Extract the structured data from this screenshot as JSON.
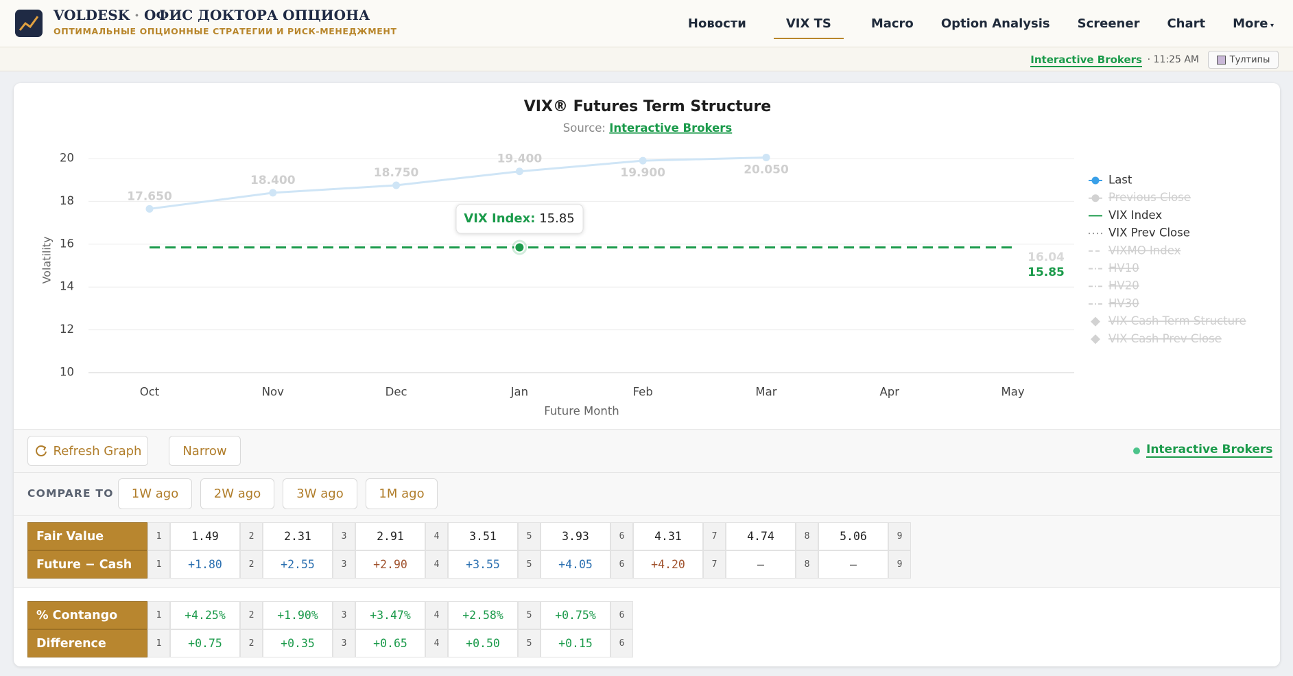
{
  "header": {
    "brand": "VOLDESK",
    "separator": "·",
    "office": "ОФИС ДОКТОРА ОПЦИОНА",
    "tagline": "ОПТИМАЛЬНЫЕ ОПЦИОННЫЕ СТРАТЕГИИ И РИСК-МЕНЕДЖМЕНТ"
  },
  "nav": {
    "items": [
      "Новости",
      "VIX TS",
      "Macro",
      "Option Analysis",
      "Screener",
      "Chart",
      "More"
    ],
    "active": 1
  },
  "status": {
    "source": "Interactive Brokers",
    "time": "· 11:25 AM",
    "tooltips": "Тултипы"
  },
  "chart_data": {
    "type": "line",
    "title": "VIX® Futures Term Structure",
    "subtitle": "Source:",
    "source": "Interactive Brokers",
    "x_label": "Future Month",
    "y_label": "Volatility",
    "categories": [
      "Oct",
      "Nov",
      "Dec",
      "Jan",
      "Feb",
      "Mar",
      "Apr",
      "May"
    ],
    "ylim": [
      10,
      20
    ],
    "yticks": [
      10,
      12,
      14,
      16,
      18,
      20
    ],
    "grid": true,
    "legend": "right",
    "series": [
      {
        "name": "Last",
        "color": "#cfe5f6",
        "visible": true,
        "symbol": "dot",
        "values": [
          17.65,
          18.4,
          18.75,
          19.4,
          19.9,
          20.05,
          null,
          null
        ],
        "value_labels": [
          "17.650",
          "18.400",
          "18.750",
          "19.400",
          "19.900",
          "20.050",
          null,
          null
        ]
      },
      {
        "name": "Previous Close",
        "visible": false,
        "symbol": "dot"
      },
      {
        "name": "VIX Index",
        "color": "#1a9a4a",
        "visible": true,
        "symbol": "line",
        "dashed": true,
        "values": [
          15.85,
          15.85,
          15.85,
          15.85,
          15.85,
          15.85,
          15.85,
          15.85
        ]
      },
      {
        "name": "VIX Prev Close",
        "color": "#d0d0d0",
        "visible": true,
        "symbol": "dotted",
        "values": [
          null,
          null,
          null,
          null,
          null,
          null,
          null,
          16.04
        ]
      },
      {
        "name": "VIXMO Index",
        "visible": false,
        "symbol": "dashed"
      },
      {
        "name": "HV10",
        "visible": false,
        "symbol": "dashdot"
      },
      {
        "name": "HV20",
        "visible": false,
        "symbol": "dashdot"
      },
      {
        "name": "HV30",
        "visible": false,
        "symbol": "dashdot"
      },
      {
        "name": "VIX Cash Term Structure",
        "visible": false,
        "symbol": "diamond"
      },
      {
        "name": "VIX Cash Prev Close",
        "visible": false,
        "symbol": "diamond"
      }
    ],
    "tooltip": {
      "label": "VIX Index:",
      "value": 15.85
    }
  },
  "toolbar": {
    "refresh": "Refresh Graph",
    "narrow": "Narrow",
    "source": "Interactive Brokers"
  },
  "compare": {
    "label": "COMPARE TO",
    "options": [
      "1W ago",
      "2W ago",
      "3W ago",
      "1M ago"
    ]
  },
  "tables": [
    {
      "rows": [
        {
          "label": "Fair Value",
          "indices": [
            1,
            2,
            3,
            4,
            5,
            6,
            7,
            8,
            9
          ],
          "values": [
            "1.49",
            "2.31",
            "2.91",
            "3.51",
            "3.93",
            "4.31",
            "4.74",
            "5.06"
          ],
          "colors": [
            "#222",
            "#222",
            "#222",
            "#222",
            "#222",
            "#222",
            "#222",
            "#222"
          ]
        },
        {
          "label": "Future − Cash",
          "indices": [
            1,
            2,
            3,
            4,
            5,
            6,
            7,
            8,
            9
          ],
          "values": [
            "+1.80",
            "+2.55",
            "+2.90",
            "+3.55",
            "+4.05",
            "+4.20",
            "—",
            "—"
          ],
          "colors": [
            "#2a6fb0",
            "#2a6fb0",
            "#a0522d",
            "#2a6fb0",
            "#2a6fb0",
            "#a0522d",
            "#333",
            "#333"
          ]
        }
      ]
    },
    {
      "rows": [
        {
          "label": "% Contango",
          "indices": [
            1,
            2,
            3,
            4,
            5,
            6
          ],
          "values": [
            "+4.25%",
            "+1.90%",
            "+3.47%",
            "+2.58%",
            "+0.75%"
          ],
          "colors": [
            "#1a9a4a",
            "#1a9a4a",
            "#1a9a4a",
            "#1a9a4a",
            "#1a9a4a"
          ]
        },
        {
          "label": "Difference",
          "indices": [
            1,
            2,
            3,
            4,
            5,
            6
          ],
          "values": [
            "+0.75",
            "+0.35",
            "+0.65",
            "+0.50",
            "+0.15"
          ],
          "colors": [
            "#1a9a4a",
            "#1a9a4a",
            "#1a9a4a",
            "#1a9a4a",
            "#1a9a4a"
          ]
        }
      ]
    }
  ]
}
